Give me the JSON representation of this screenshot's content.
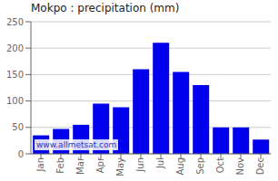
{
  "chart_data": {
    "type": "bar",
    "title": "Mokpo : precipitation (mm)",
    "categories": [
      "Jan",
      "Feb",
      "Mar",
      "Apr",
      "May",
      "Jun",
      "Jul",
      "Aug",
      "Sep",
      "Oct",
      "Nov",
      "Dec"
    ],
    "values": [
      35,
      47,
      55,
      95,
      88,
      160,
      210,
      155,
      130,
      50,
      50,
      27
    ],
    "color": "#0000ee",
    "ylim": [
      0,
      250
    ],
    "yticks": [
      0,
      50,
      100,
      150,
      200,
      250
    ],
    "grid": true,
    "annotation": "www.allmetsat.com"
  }
}
